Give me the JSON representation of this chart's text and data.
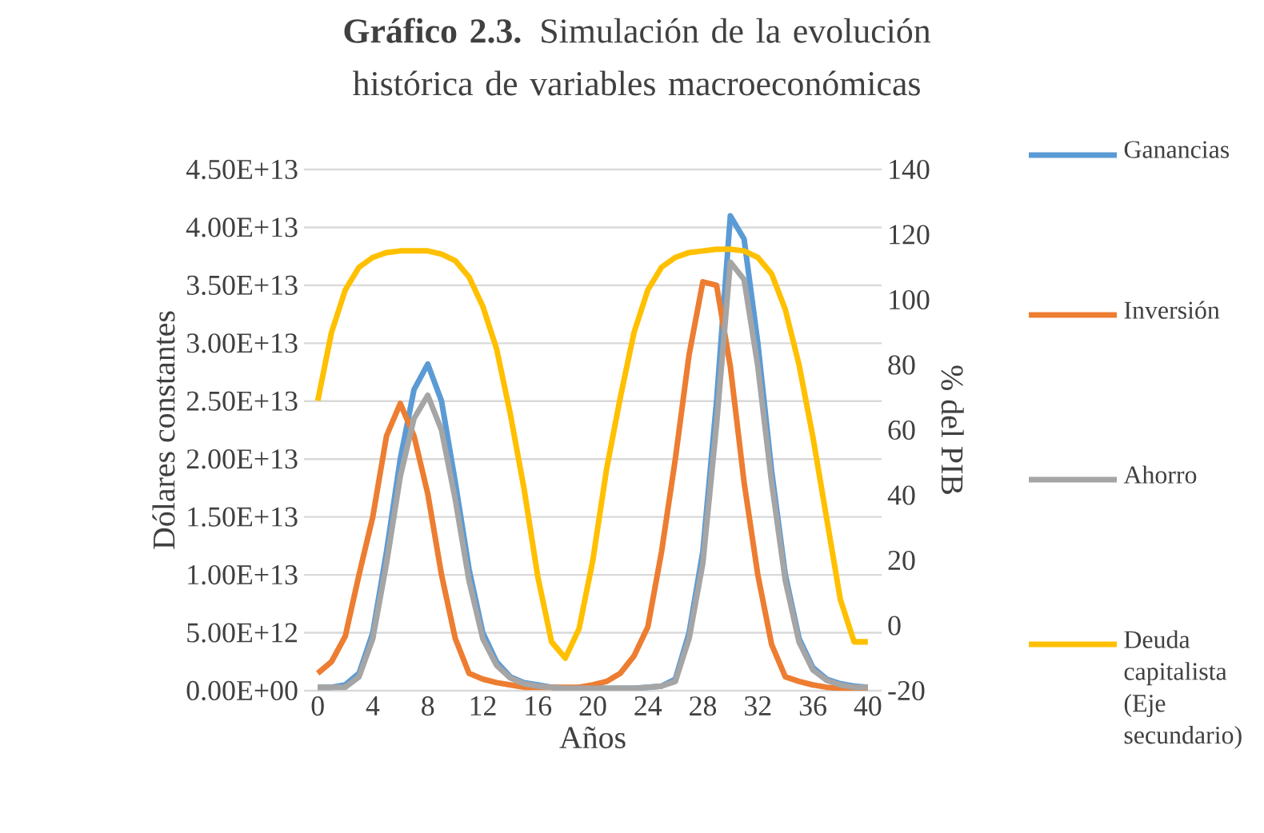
{
  "chart_data": {
    "type": "line",
    "title": "**Gráfico 2.3.** Simulación de la evolución histórica de variables macroeconómicas",
    "xlabel": "Años",
    "ylabel": "Dólares constantes",
    "y2label": "% del PIB",
    "x": [
      0,
      1,
      2,
      3,
      4,
      5,
      6,
      7,
      8,
      9,
      10,
      11,
      12,
      13,
      14,
      15,
      16,
      17,
      18,
      19,
      20,
      21,
      22,
      23,
      24,
      25,
      26,
      27,
      28,
      29,
      30,
      31,
      32,
      33,
      34,
      35,
      36,
      37,
      38,
      39,
      40
    ],
    "series": [
      {
        "name": "Ganancias",
        "color": "#5b9bd5",
        "values": [
          300000000000.0,
          300000000000.0,
          500000000000.0,
          1500000000000.0,
          5000000000000.0,
          12000000000000.0,
          20000000000000.0,
          26000000000000.0,
          28200000000000.0,
          25000000000000.0,
          18000000000000.0,
          10500000000000.0,
          5000000000000.0,
          2500000000000.0,
          1200000000000.0,
          700000000000.0,
          500000000000.0,
          300000000000.0,
          200000000000.0,
          200000000000.0,
          200000000000.0,
          200000000000.0,
          200000000000.0,
          200000000000.0,
          300000000000.0,
          400000000000.0,
          1000000000000.0,
          5000000000000.0,
          12000000000000.0,
          25000000000000.0,
          41000000000000.0,
          39000000000000.0,
          30000000000000.0,
          19000000000000.0,
          10000000000000.0,
          4500000000000.0,
          2000000000000.0,
          1000000000000.0,
          600000000000.0,
          400000000000.0,
          300000000000.0
        ]
      },
      {
        "name": "Inversión",
        "color": "#ed7d31",
        "values": [
          1500000000000.0,
          2500000000000.0,
          4700000000000.0,
          10000000000000.0,
          15000000000000.0,
          22000000000000.0,
          24800000000000.0,
          22000000000000.0,
          17000000000000.0,
          10000000000000.0,
          4500000000000.0,
          1500000000000.0,
          1000000000000.0,
          700000000000.0,
          500000000000.0,
          300000000000.0,
          300000000000.0,
          300000000000.0,
          300000000000.0,
          300000000000.0,
          500000000000.0,
          800000000000.0,
          1500000000000.0,
          3000000000000.0,
          5500000000000.0,
          12000000000000.0,
          20000000000000.0,
          29000000000000.0,
          35300000000000.0,
          35000000000000.0,
          28000000000000.0,
          18000000000000.0,
          10000000000000.0,
          4000000000000.0,
          1200000000000.0,
          800000000000.0,
          500000000000.0,
          300000000000.0,
          200000000000.0,
          200000000000.0,
          200000000000.0
        ]
      },
      {
        "name": "Ahorro",
        "color": "#a5a5a5",
        "values": [
          300000000000.0,
          300000000000.0,
          300000000000.0,
          1200000000000.0,
          4500000000000.0,
          11000000000000.0,
          18500000000000.0,
          23500000000000.0,
          25500000000000.0,
          22500000000000.0,
          16500000000000.0,
          9500000000000.0,
          4500000000000.0,
          2200000000000.0,
          1100000000000.0,
          600000000000.0,
          400000000000.0,
          300000000000.0,
          200000000000.0,
          200000000000.0,
          200000000000.0,
          200000000000.0,
          200000000000.0,
          200000000000.0,
          300000000000.0,
          400000000000.0,
          800000000000.0,
          4500000000000.0,
          11000000000000.0,
          23000000000000.0,
          37000000000000.0,
          35500000000000.0,
          28000000000000.0,
          18000000000000.0,
          9500000000000.0,
          4200000000000.0,
          1800000000000.0,
          900000000000.0,
          500000000000.0,
          300000000000.0,
          300000000000.0
        ]
      },
      {
        "name": "Deuda capitalista (Eje secundario)",
        "color": "#ffc000",
        "axis": "y2",
        "values": [
          69,
          90,
          103,
          110,
          113,
          114.5,
          115,
          115,
          115,
          114,
          112,
          107,
          98,
          85,
          65,
          42,
          15,
          -5,
          -10,
          -1,
          20,
          48,
          70,
          90,
          103,
          110,
          113,
          114.5,
          115,
          115.5,
          115.5,
          115,
          113,
          108,
          97,
          80,
          58,
          33,
          8,
          -5,
          -5
        ]
      }
    ],
    "xlim": [
      -1,
      41
    ],
    "xticks": [
      0,
      4,
      8,
      12,
      16,
      20,
      24,
      28,
      32,
      36,
      40
    ],
    "ylim": [
      0,
      45000000000000.0
    ],
    "yticks": [
      {
        "value": 0,
        "label": "0.00E+00"
      },
      {
        "value": 5000000000000.0,
        "label": "5.00E+12"
      },
      {
        "value": 10000000000000.0,
        "label": "1.00E+13"
      },
      {
        "value": 15000000000000.0,
        "label": "1.50E+13"
      },
      {
        "value": 20000000000000.0,
        "label": "2.00E+13"
      },
      {
        "value": 25000000000000.0,
        "label": "2.50E+13"
      },
      {
        "value": 30000000000000.0,
        "label": "3.00E+13"
      },
      {
        "value": 35000000000000.0,
        "label": "3.50E+13"
      },
      {
        "value": 40000000000000.0,
        "label": "4.00E+13"
      },
      {
        "value": 45000000000000.0,
        "label": "4.50E+13"
      }
    ],
    "y2lim": [
      -20,
      140
    ],
    "y2ticks": [
      -20,
      0,
      20,
      40,
      60,
      80,
      100,
      120,
      140
    ],
    "grid": "y",
    "legend": "right",
    "marker": "none",
    "line_style": "solid"
  }
}
